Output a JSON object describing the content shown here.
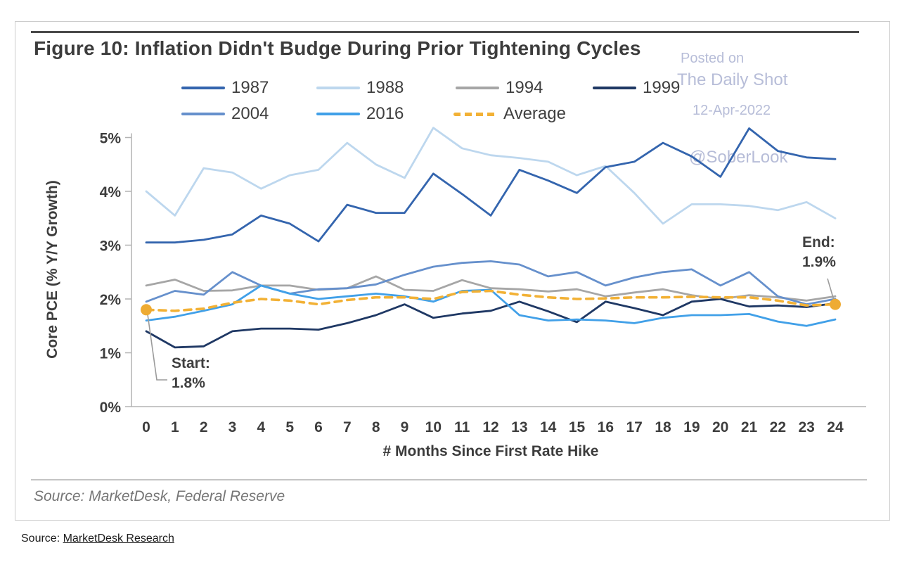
{
  "figure": {
    "title": "Figure 10: Inflation Didn't Budge During Prior Tightening Cycles",
    "source_note": "Source: MarketDesk, Federal Reserve"
  },
  "watermark": {
    "posted_on": "Posted on",
    "site": "The Daily Shot",
    "date": "12-Apr-2022",
    "handle": "@SoberLook"
  },
  "page_source": {
    "prefix": "Source: ",
    "link_text": "MarketDesk Research"
  },
  "chart_data": {
    "type": "line",
    "title": "Figure 10: Inflation Didn't Budge During Prior Tightening Cycles",
    "xlabel": "# Months Since First Rate Hike",
    "ylabel": "Core PCE (% Y/Y Growth)",
    "xlim": [
      0,
      24
    ],
    "ylim": [
      0,
      5
    ],
    "x_ticks": [
      0,
      1,
      2,
      3,
      4,
      5,
      6,
      7,
      8,
      9,
      10,
      11,
      12,
      13,
      14,
      15,
      16,
      17,
      18,
      19,
      20,
      21,
      22,
      23,
      24
    ],
    "y_ticks": [
      0,
      1,
      2,
      3,
      4,
      5
    ],
    "y_tick_suffix": "%",
    "grid": false,
    "legend_position": "top",
    "x": [
      0,
      1,
      2,
      3,
      4,
      5,
      6,
      7,
      8,
      9,
      10,
      11,
      12,
      13,
      14,
      15,
      16,
      17,
      18,
      19,
      20,
      21,
      22,
      23,
      24
    ],
    "series": [
      {
        "name": "1987",
        "color": "#3465ae",
        "dash": false,
        "values": [
          3.05,
          3.05,
          3.1,
          3.2,
          3.55,
          3.4,
          3.07,
          3.75,
          3.6,
          3.6,
          4.33,
          3.95,
          3.55,
          4.4,
          4.2,
          3.97,
          4.45,
          4.55,
          4.9,
          4.65,
          4.27,
          5.17,
          4.75,
          4.63,
          4.6
        ]
      },
      {
        "name": "1988",
        "color": "#bdd7ee",
        "dash": false,
        "values": [
          4.0,
          3.55,
          4.43,
          4.35,
          4.05,
          4.3,
          4.4,
          4.9,
          4.5,
          4.25,
          5.18,
          4.8,
          4.67,
          4.62,
          4.55,
          4.3,
          4.47,
          3.97,
          3.4,
          3.76,
          3.76,
          3.73,
          3.65,
          3.8,
          3.5
        ]
      },
      {
        "name": "1994",
        "color": "#a6a6a6",
        "dash": false,
        "values": [
          2.25,
          2.36,
          2.15,
          2.16,
          2.25,
          2.25,
          2.17,
          2.2,
          2.42,
          2.17,
          2.15,
          2.35,
          2.2,
          2.18,
          2.14,
          2.18,
          2.05,
          2.12,
          2.18,
          2.07,
          2.0,
          2.07,
          2.03,
          1.97,
          2.05
        ]
      },
      {
        "name": "1999",
        "color": "#1f3864",
        "dash": false,
        "values": [
          1.4,
          1.1,
          1.12,
          1.4,
          1.45,
          1.45,
          1.43,
          1.55,
          1.7,
          1.9,
          1.65,
          1.73,
          1.78,
          1.95,
          1.77,
          1.57,
          1.95,
          1.83,
          1.7,
          1.95,
          2.0,
          1.86,
          1.88,
          1.85,
          1.92
        ]
      },
      {
        "name": "2004",
        "color": "#6690cc",
        "dash": false,
        "values": [
          1.95,
          2.15,
          2.08,
          2.5,
          2.25,
          2.1,
          2.18,
          2.2,
          2.27,
          2.45,
          2.6,
          2.67,
          2.7,
          2.64,
          2.42,
          2.5,
          2.25,
          2.4,
          2.5,
          2.55,
          2.25,
          2.5,
          2.05,
          1.9,
          2.0
        ]
      },
      {
        "name": "2016",
        "color": "#41a0e8",
        "dash": false,
        "values": [
          1.6,
          1.67,
          1.78,
          1.9,
          2.25,
          2.1,
          2.0,
          2.05,
          2.1,
          2.05,
          1.95,
          2.15,
          2.17,
          1.7,
          1.6,
          1.62,
          1.6,
          1.55,
          1.65,
          1.7,
          1.7,
          1.72,
          1.58,
          1.5,
          1.62
        ]
      },
      {
        "name": "Average",
        "color": "#f2b135",
        "dash": true,
        "values": [
          1.8,
          1.78,
          1.82,
          1.93,
          2.0,
          1.97,
          1.9,
          1.98,
          2.03,
          2.03,
          2.0,
          2.13,
          2.15,
          2.08,
          2.03,
          2.0,
          2.01,
          2.03,
          2.03,
          2.04,
          2.03,
          2.03,
          1.97,
          1.88,
          1.9
        ]
      }
    ],
    "annotations": [
      {
        "label": "Start:",
        "value_label": "1.8%",
        "month": 0,
        "value": 1.8,
        "marker_color": "#eeab33"
      },
      {
        "label": "End:",
        "value_label": "1.9%",
        "month": 24,
        "value": 1.9,
        "marker_color": "#eeab33"
      }
    ]
  }
}
